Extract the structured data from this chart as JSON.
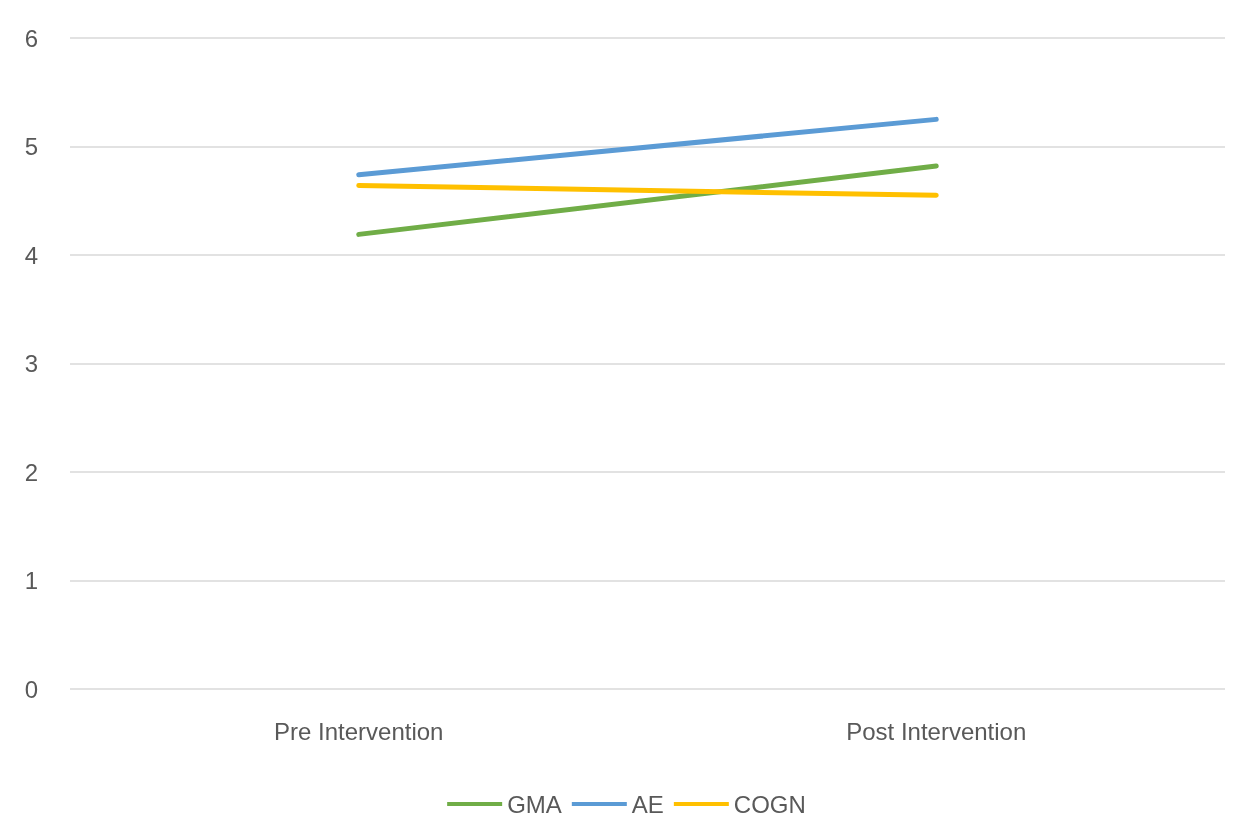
{
  "chart_data": {
    "type": "line",
    "categories": [
      "Pre Intervention",
      "Post Intervention"
    ],
    "series": [
      {
        "name": "GMA",
        "color": "#70ad47",
        "values": [
          4.19,
          4.82
        ]
      },
      {
        "name": "AE",
        "color": "#5b9bd5",
        "values": [
          4.74,
          5.25
        ]
      },
      {
        "name": "COGN",
        "color": "#ffc000",
        "values": [
          4.64,
          4.55
        ]
      }
    ],
    "ylim": [
      0,
      6
    ],
    "yticks": [
      0,
      1,
      2,
      3,
      4,
      5,
      6
    ],
    "grid": "y",
    "legend": "bottom",
    "marker": "none",
    "line_style": "solid"
  }
}
